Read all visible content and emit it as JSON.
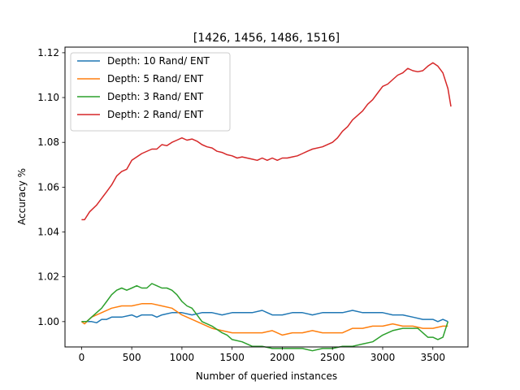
{
  "chart_data": {
    "type": "line",
    "title": "[1426, 1456, 1486, 1516]",
    "xlabel": "Number of queried instances",
    "ylabel": "Accuracy %",
    "xlim": [
      -165,
      3850
    ],
    "ylim": [
      0.9887,
      1.1225
    ],
    "xticks": [
      0,
      500,
      1000,
      1500,
      2000,
      2500,
      3000,
      3500
    ],
    "yticks": [
      1.0,
      1.02,
      1.04,
      1.06,
      1.08,
      1.1,
      1.12
    ],
    "ytick_labels": [
      "1.00",
      "1.02",
      "1.04",
      "1.06",
      "1.08",
      "1.10",
      "1.12"
    ],
    "grid": false,
    "legend_position": "upper-left",
    "series": [
      {
        "name": "Depth: 10 Rand/ ENT",
        "color": "#1f77b4",
        "points": [
          [
            0,
            1.0
          ],
          [
            100,
            1.0
          ],
          [
            150,
            0.9995
          ],
          [
            200,
            1.001
          ],
          [
            250,
            1.001
          ],
          [
            300,
            1.002
          ],
          [
            400,
            1.002
          ],
          [
            500,
            1.003
          ],
          [
            550,
            1.002
          ],
          [
            600,
            1.003
          ],
          [
            700,
            1.003
          ],
          [
            750,
            1.002
          ],
          [
            800,
            1.003
          ],
          [
            900,
            1.004
          ],
          [
            1000,
            1.004
          ],
          [
            1100,
            1.003
          ],
          [
            1200,
            1.004
          ],
          [
            1300,
            1.004
          ],
          [
            1400,
            1.003
          ],
          [
            1500,
            1.004
          ],
          [
            1600,
            1.004
          ],
          [
            1700,
            1.004
          ],
          [
            1800,
            1.005
          ],
          [
            1850,
            1.004
          ],
          [
            1900,
            1.003
          ],
          [
            2000,
            1.003
          ],
          [
            2100,
            1.004
          ],
          [
            2200,
            1.004
          ],
          [
            2300,
            1.003
          ],
          [
            2400,
            1.004
          ],
          [
            2500,
            1.004
          ],
          [
            2600,
            1.004
          ],
          [
            2700,
            1.005
          ],
          [
            2800,
            1.004
          ],
          [
            2900,
            1.004
          ],
          [
            3000,
            1.004
          ],
          [
            3100,
            1.003
          ],
          [
            3200,
            1.003
          ],
          [
            3300,
            1.002
          ],
          [
            3400,
            1.001
          ],
          [
            3500,
            1.001
          ],
          [
            3550,
            1.0
          ],
          [
            3600,
            1.001
          ],
          [
            3650,
            1.0
          ]
        ]
      },
      {
        "name": "Depth: 5 Rand/ ENT",
        "color": "#ff7f0e",
        "points": [
          [
            0,
            1.0
          ],
          [
            30,
            0.999
          ],
          [
            100,
            1.002
          ],
          [
            200,
            1.004
          ],
          [
            300,
            1.006
          ],
          [
            400,
            1.007
          ],
          [
            500,
            1.007
          ],
          [
            600,
            1.008
          ],
          [
            700,
            1.008
          ],
          [
            800,
            1.007
          ],
          [
            900,
            1.006
          ],
          [
            1000,
            1.003
          ],
          [
            1100,
            1.001
          ],
          [
            1200,
            0.999
          ],
          [
            1300,
            0.997
          ],
          [
            1400,
            0.996
          ],
          [
            1500,
            0.995
          ],
          [
            1600,
            0.995
          ],
          [
            1700,
            0.995
          ],
          [
            1800,
            0.995
          ],
          [
            1900,
            0.996
          ],
          [
            2000,
            0.994
          ],
          [
            2100,
            0.995
          ],
          [
            2200,
            0.995
          ],
          [
            2300,
            0.996
          ],
          [
            2400,
            0.995
          ],
          [
            2500,
            0.995
          ],
          [
            2600,
            0.995
          ],
          [
            2700,
            0.997
          ],
          [
            2800,
            0.997
          ],
          [
            2900,
            0.998
          ],
          [
            3000,
            0.998
          ],
          [
            3100,
            0.999
          ],
          [
            3200,
            0.998
          ],
          [
            3300,
            0.998
          ],
          [
            3400,
            0.997
          ],
          [
            3500,
            0.997
          ],
          [
            3600,
            0.998
          ],
          [
            3650,
            0.998
          ]
        ]
      },
      {
        "name": "Depth: 3 Rand/ ENT",
        "color": "#2ca02c",
        "points": [
          [
            0,
            1.0
          ],
          [
            50,
            1.0
          ],
          [
            100,
            1.002
          ],
          [
            150,
            1.004
          ],
          [
            200,
            1.006
          ],
          [
            250,
            1.009
          ],
          [
            300,
            1.012
          ],
          [
            350,
            1.014
          ],
          [
            400,
            1.015
          ],
          [
            450,
            1.014
          ],
          [
            500,
            1.015
          ],
          [
            550,
            1.016
          ],
          [
            600,
            1.015
          ],
          [
            650,
            1.015
          ],
          [
            700,
            1.017
          ],
          [
            750,
            1.016
          ],
          [
            800,
            1.015
          ],
          [
            850,
            1.015
          ],
          [
            900,
            1.014
          ],
          [
            950,
            1.012
          ],
          [
            1000,
            1.009
          ],
          [
            1050,
            1.007
          ],
          [
            1100,
            1.006
          ],
          [
            1150,
            1.003
          ],
          [
            1200,
            1.0
          ],
          [
            1300,
            0.998
          ],
          [
            1400,
            0.995
          ],
          [
            1450,
            0.994
          ],
          [
            1500,
            0.992
          ],
          [
            1600,
            0.991
          ],
          [
            1700,
            0.989
          ],
          [
            1800,
            0.989
          ],
          [
            1900,
            0.988
          ],
          [
            2000,
            0.988
          ],
          [
            2100,
            0.988
          ],
          [
            2200,
            0.988
          ],
          [
            2300,
            0.987
          ],
          [
            2400,
            0.988
          ],
          [
            2500,
            0.988
          ],
          [
            2600,
            0.989
          ],
          [
            2700,
            0.989
          ],
          [
            2800,
            0.99
          ],
          [
            2900,
            0.991
          ],
          [
            3000,
            0.994
          ],
          [
            3100,
            0.996
          ],
          [
            3200,
            0.997
          ],
          [
            3300,
            0.997
          ],
          [
            3350,
            0.997
          ],
          [
            3400,
            0.995
          ],
          [
            3450,
            0.993
          ],
          [
            3500,
            0.993
          ],
          [
            3550,
            0.992
          ],
          [
            3600,
            0.993
          ],
          [
            3650,
            1.0
          ]
        ]
      },
      {
        "name": "Depth: 2 Rand/ ENT",
        "color": "#d62728",
        "points": [
          [
            0,
            1.0455
          ],
          [
            30,
            1.0455
          ],
          [
            80,
            1.049
          ],
          [
            150,
            1.052
          ],
          [
            250,
            1.058
          ],
          [
            300,
            1.061
          ],
          [
            350,
            1.065
          ],
          [
            400,
            1.067
          ],
          [
            450,
            1.068
          ],
          [
            500,
            1.072
          ],
          [
            600,
            1.075
          ],
          [
            700,
            1.077
          ],
          [
            750,
            1.077
          ],
          [
            800,
            1.079
          ],
          [
            850,
            1.0785
          ],
          [
            900,
            1.08
          ],
          [
            950,
            1.081
          ],
          [
            1000,
            1.082
          ],
          [
            1050,
            1.081
          ],
          [
            1100,
            1.0815
          ],
          [
            1150,
            1.0805
          ],
          [
            1200,
            1.079
          ],
          [
            1250,
            1.078
          ],
          [
            1300,
            1.0775
          ],
          [
            1350,
            1.076
          ],
          [
            1400,
            1.0755
          ],
          [
            1450,
            1.0745
          ],
          [
            1500,
            1.074
          ],
          [
            1550,
            1.073
          ],
          [
            1600,
            1.0735
          ],
          [
            1650,
            1.073
          ],
          [
            1700,
            1.0725
          ],
          [
            1750,
            1.072
          ],
          [
            1800,
            1.073
          ],
          [
            1850,
            1.072
          ],
          [
            1900,
            1.073
          ],
          [
            1950,
            1.072
          ],
          [
            2000,
            1.073
          ],
          [
            2050,
            1.073
          ],
          [
            2100,
            1.0735
          ],
          [
            2150,
            1.074
          ],
          [
            2200,
            1.075
          ],
          [
            2250,
            1.076
          ],
          [
            2300,
            1.077
          ],
          [
            2400,
            1.078
          ],
          [
            2500,
            1.08
          ],
          [
            2550,
            1.082
          ],
          [
            2600,
            1.085
          ],
          [
            2650,
            1.087
          ],
          [
            2700,
            1.09
          ],
          [
            2750,
            1.092
          ],
          [
            2800,
            1.094
          ],
          [
            2850,
            1.097
          ],
          [
            2900,
            1.099
          ],
          [
            2950,
            1.102
          ],
          [
            3000,
            1.105
          ],
          [
            3050,
            1.106
          ],
          [
            3100,
            1.108
          ],
          [
            3150,
            1.11
          ],
          [
            3200,
            1.111
          ],
          [
            3250,
            1.113
          ],
          [
            3300,
            1.112
          ],
          [
            3350,
            1.1115
          ],
          [
            3400,
            1.112
          ],
          [
            3450,
            1.114
          ],
          [
            3500,
            1.1155
          ],
          [
            3550,
            1.114
          ],
          [
            3600,
            1.111
          ],
          [
            3650,
            1.104
          ],
          [
            3680,
            1.096
          ]
        ]
      }
    ]
  }
}
